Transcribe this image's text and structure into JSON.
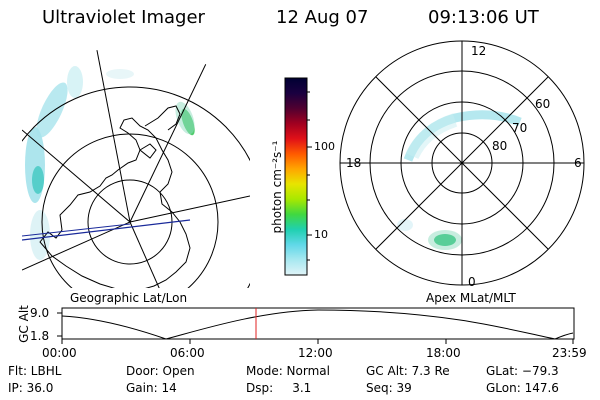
{
  "header": {
    "instrument": "Ultraviolet Imager",
    "date": "12 Aug 07",
    "time": "09:13:06 UT"
  },
  "colorbar": {
    "unit_label": "photon cm⁻²s⁻¹",
    "tick_labels": [
      "100",
      "10"
    ],
    "colors": [
      "#000033",
      "#1a0040",
      "#500030",
      "#a00020",
      "#e01018",
      "#ff5a00",
      "#ffa600",
      "#e8e400",
      "#a8e800",
      "#40d840",
      "#20d0b0",
      "#60d8e8",
      "#a8e8f0",
      "#e0f4f8"
    ]
  },
  "left_panel": {
    "label": "Geographic Lat/Lon"
  },
  "right_panel": {
    "label": "Apex MLat/MLT",
    "mlt_labels": {
      "top": "12",
      "left": "18",
      "right": "6",
      "bottom": "0"
    },
    "lat_labels": [
      "60",
      "70",
      "80"
    ]
  },
  "altitude_plot": {
    "ylabel": "GC Alt",
    "y_ticks": [
      "9.0",
      "1.8"
    ],
    "x_ticks": [
      "00:00",
      "06:00",
      "12:00",
      "18:00",
      "23:59"
    ],
    "current_time_marker_color": "#e02020"
  },
  "footer": {
    "row1": [
      "Flt: LBHL",
      "Door: Open",
      "Mode: Normal",
      "GC Alt: 7.3 Re",
      "GLat: −79.3"
    ],
    "row2": [
      "IP: 36.0",
      "Gain: 14",
      "Dsp:     3.1",
      "Seq: 39",
      "GLon: 147.6"
    ]
  }
}
